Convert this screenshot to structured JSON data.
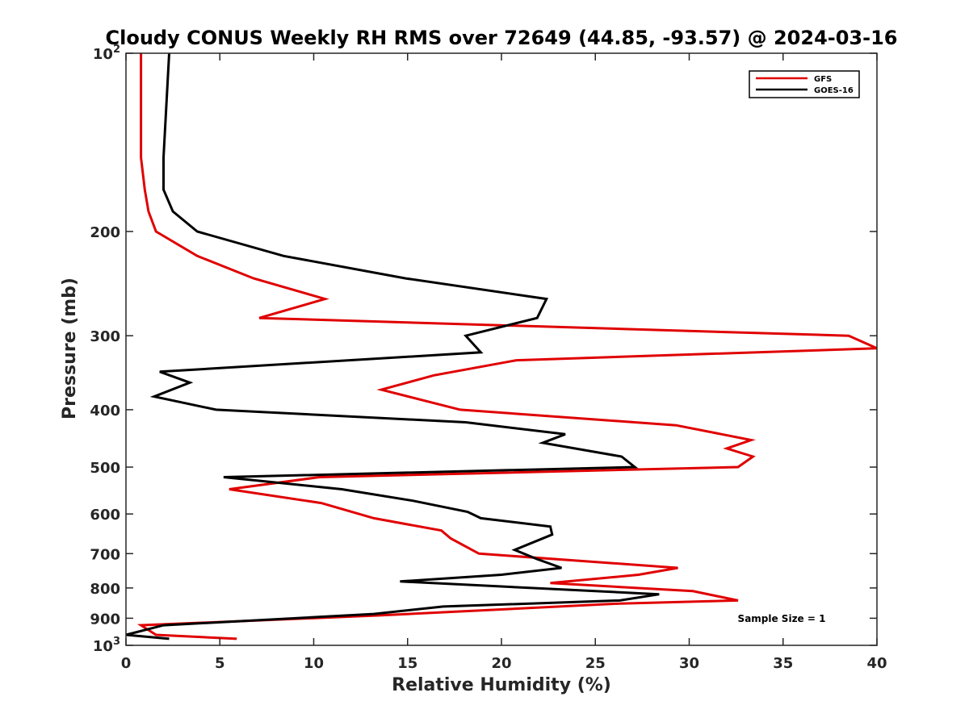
{
  "chart_data": {
    "type": "line",
    "title": "Cloudy CONUS Weekly RH RMS over 72649 (44.85, -93.57) @ 2024-03-16",
    "xlabel": "Relative Humidity (%)",
    "ylabel": "Pressure (mb)",
    "xlim": [
      0,
      40
    ],
    "ylim": [
      100,
      1000
    ],
    "y_scale": "log",
    "y_reversed": true,
    "x_ticks": [
      "0",
      "5",
      "10",
      "15",
      "20",
      "25",
      "30",
      "35",
      "40"
    ],
    "y_ticks": [
      {
        "value": 100,
        "label": "10",
        "sup": "2"
      },
      {
        "value": 200,
        "label": "200",
        "sup": ""
      },
      {
        "value": 300,
        "label": "300",
        "sup": ""
      },
      {
        "value": 400,
        "label": "400",
        "sup": ""
      },
      {
        "value": 500,
        "label": "500",
        "sup": ""
      },
      {
        "value": 600,
        "label": "600",
        "sup": ""
      },
      {
        "value": 700,
        "label": "700",
        "sup": ""
      },
      {
        "value": 800,
        "label": "800",
        "sup": ""
      },
      {
        "value": 900,
        "label": "900",
        "sup": ""
      },
      {
        "value": 1000,
        "label": "10",
        "sup": "3"
      }
    ],
    "grid": false,
    "legend_position": "top-right",
    "series": [
      {
        "name": "GFS",
        "color": "#e00000",
        "points": [
          {
            "x": 0.8,
            "p": 100
          },
          {
            "x": 0.8,
            "p": 150
          },
          {
            "x": 1.0,
            "p": 170
          },
          {
            "x": 1.2,
            "p": 185
          },
          {
            "x": 1.6,
            "p": 200
          },
          {
            "x": 3.8,
            "p": 220
          },
          {
            "x": 6.8,
            "p": 240
          },
          {
            "x": 10.6,
            "p": 260
          },
          {
            "x": 7.1,
            "p": 280
          },
          {
            "x": 38.5,
            "p": 300
          },
          {
            "x": 40.0,
            "p": 315
          },
          {
            "x": 20.8,
            "p": 330
          },
          {
            "x": 16.4,
            "p": 350
          },
          {
            "x": 13.6,
            "p": 370
          },
          {
            "x": 17.8,
            "p": 400
          },
          {
            "x": 29.3,
            "p": 425
          },
          {
            "x": 33.3,
            "p": 450
          },
          {
            "x": 32.0,
            "p": 465
          },
          {
            "x": 33.4,
            "p": 480
          },
          {
            "x": 32.6,
            "p": 500
          },
          {
            "x": 10.3,
            "p": 520
          },
          {
            "x": 5.5,
            "p": 545
          },
          {
            "x": 10.4,
            "p": 575
          },
          {
            "x": 13.2,
            "p": 610
          },
          {
            "x": 16.8,
            "p": 640
          },
          {
            "x": 17.3,
            "p": 660
          },
          {
            "x": 18.8,
            "p": 700
          },
          {
            "x": 29.4,
            "p": 740
          },
          {
            "x": 27.3,
            "p": 760
          },
          {
            "x": 22.6,
            "p": 785
          },
          {
            "x": 30.2,
            "p": 810
          },
          {
            "x": 32.6,
            "p": 840
          },
          {
            "x": 26.3,
            "p": 850
          },
          {
            "x": 13.5,
            "p": 890
          },
          {
            "x": 0.8,
            "p": 925
          },
          {
            "x": 1.6,
            "p": 960
          },
          {
            "x": 5.9,
            "p": 975
          }
        ]
      },
      {
        "name": "GOES-16",
        "color": "#000000",
        "points": [
          {
            "x": 2.3,
            "p": 100
          },
          {
            "x": 2.0,
            "p": 150
          },
          {
            "x": 2.0,
            "p": 170
          },
          {
            "x": 2.5,
            "p": 185
          },
          {
            "x": 3.8,
            "p": 200
          },
          {
            "x": 8.4,
            "p": 220
          },
          {
            "x": 14.9,
            "p": 240
          },
          {
            "x": 22.4,
            "p": 260
          },
          {
            "x": 21.9,
            "p": 280
          },
          {
            "x": 18.1,
            "p": 300
          },
          {
            "x": 18.9,
            "p": 320
          },
          {
            "x": 1.8,
            "p": 345
          },
          {
            "x": 3.4,
            "p": 360
          },
          {
            "x": 1.5,
            "p": 380
          },
          {
            "x": 4.8,
            "p": 400
          },
          {
            "x": 18.1,
            "p": 420
          },
          {
            "x": 23.4,
            "p": 440
          },
          {
            "x": 22.2,
            "p": 455
          },
          {
            "x": 26.4,
            "p": 480
          },
          {
            "x": 27.1,
            "p": 500
          },
          {
            "x": 5.2,
            "p": 520
          },
          {
            "x": 11.5,
            "p": 545
          },
          {
            "x": 15.3,
            "p": 570
          },
          {
            "x": 18.2,
            "p": 595
          },
          {
            "x": 18.9,
            "p": 610
          },
          {
            "x": 22.6,
            "p": 630
          },
          {
            "x": 22.7,
            "p": 650
          },
          {
            "x": 20.7,
            "p": 690
          },
          {
            "x": 21.9,
            "p": 715
          },
          {
            "x": 23.2,
            "p": 740
          },
          {
            "x": 20.0,
            "p": 760
          },
          {
            "x": 14.6,
            "p": 780
          },
          {
            "x": 28.4,
            "p": 820
          },
          {
            "x": 26.3,
            "p": 840
          },
          {
            "x": 16.9,
            "p": 860
          },
          {
            "x": 13.2,
            "p": 885
          },
          {
            "x": 2.0,
            "p": 925
          },
          {
            "x": 0.0,
            "p": 960
          },
          {
            "x": 2.3,
            "p": 975
          }
        ]
      }
    ],
    "annotation": "Sample Size = 1"
  }
}
